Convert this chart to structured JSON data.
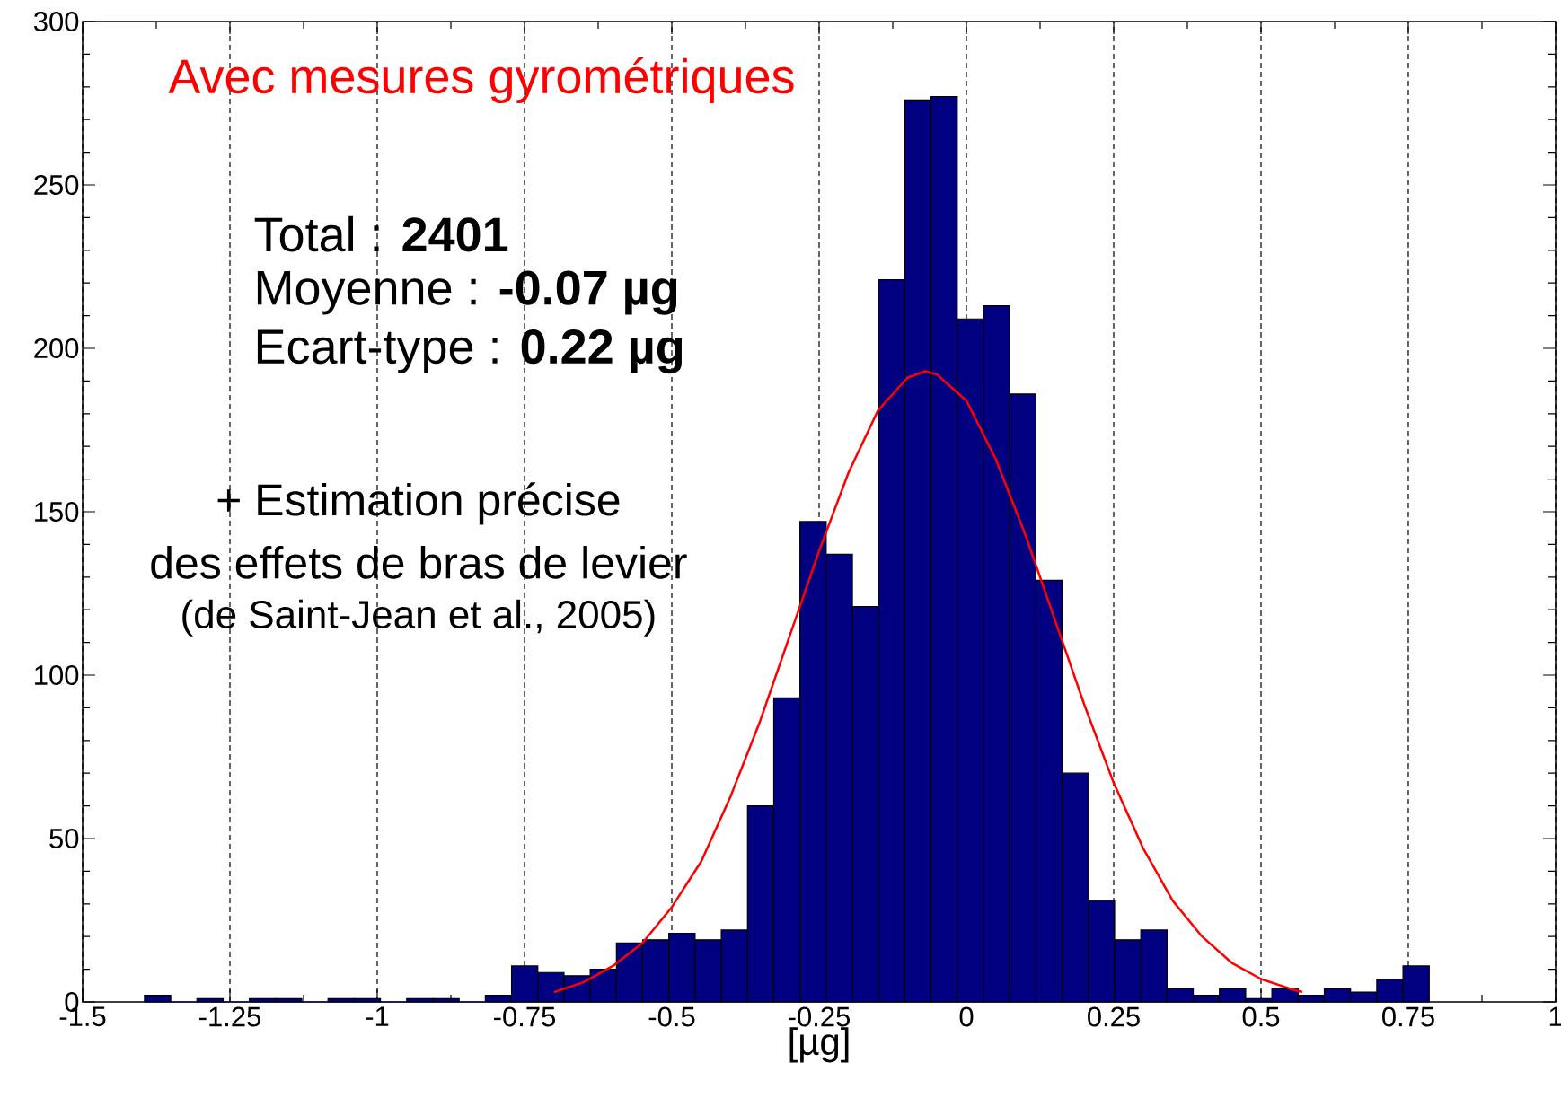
{
  "chart_data": {
    "type": "histogram",
    "title": "Avec mesures gyrométriques",
    "xlabel": "[µg]",
    "annotations": [
      "Total : **2401**",
      "Moyenne : **-0.07 µg**",
      "Ecart-type : **0.22 µg**",
      "+ Estimation précise",
      "des effets de bras de levier",
      "(de Saint-Jean et al., 2005)"
    ],
    "series": [
      {
        "color": "#000080",
        "bins": [
          -1.395,
          -1.3505,
          -1.306,
          -1.2615,
          -1.217,
          -1.1725,
          -1.128,
          -1.0835,
          -1.039,
          -0.9945,
          -0.95,
          -0.9055,
          -0.861,
          -0.8165,
          -0.772,
          -0.7275,
          -0.683,
          -0.6385,
          -0.594,
          -0.5495,
          -0.505,
          -0.4605,
          -0.416,
          -0.3715,
          -0.327,
          -0.2825,
          -0.238,
          -0.1935,
          -0.149,
          -0.1045,
          -0.06,
          -0.0155,
          0.029,
          0.0735,
          0.118,
          0.1625,
          0.207,
          0.2515,
          0.296,
          0.3405,
          0.385,
          0.4295,
          0.474,
          0.5185,
          0.563,
          0.6075,
          0.652,
          0.6965,
          0.741,
          0.7855
        ],
        "values": [
          2,
          0,
          1,
          0,
          1,
          1,
          0,
          1,
          1,
          0,
          1,
          1,
          0,
          2,
          11,
          9,
          8,
          10,
          18,
          19,
          21,
          19,
          22,
          60,
          93,
          147,
          137,
          121,
          221,
          276,
          277,
          209,
          213,
          186,
          129,
          70,
          31,
          19,
          22,
          4,
          2,
          4,
          1,
          4,
          2,
          4,
          3,
          7,
          11
        ]
      },
      {
        "type": "line",
        "color": "#ff0000",
        "x": [
          -0.7,
          -0.65,
          -0.6,
          -0.55,
          -0.5,
          -0.45,
          -0.4,
          -0.35,
          -0.3,
          -0.25,
          -0.2,
          -0.15,
          -0.1,
          -0.07,
          -0.05,
          0,
          0.05,
          0.1,
          0.15,
          0.2,
          0.25,
          0.3,
          0.35,
          0.4,
          0.45,
          0.5,
          0.55,
          0.57
        ],
        "values": [
          3,
          6,
          11,
          18,
          29,
          43,
          63,
          86,
          112,
          138,
          162,
          181,
          191,
          193,
          192,
          184,
          166,
          143,
          117,
          91,
          67,
          47,
          31,
          20,
          12,
          7,
          4,
          3
        ]
      }
    ],
    "xlim": [
      -1.5,
      1
    ],
    "ylim": [
      0,
      300
    ],
    "xticks": [
      -1.5,
      -1.25,
      -1,
      -0.75,
      -0.5,
      -0.25,
      0,
      0.25,
      0.5,
      0.75,
      1
    ],
    "yticks": [
      0,
      50,
      100,
      150,
      200,
      250,
      300
    ],
    "grid": "x"
  }
}
